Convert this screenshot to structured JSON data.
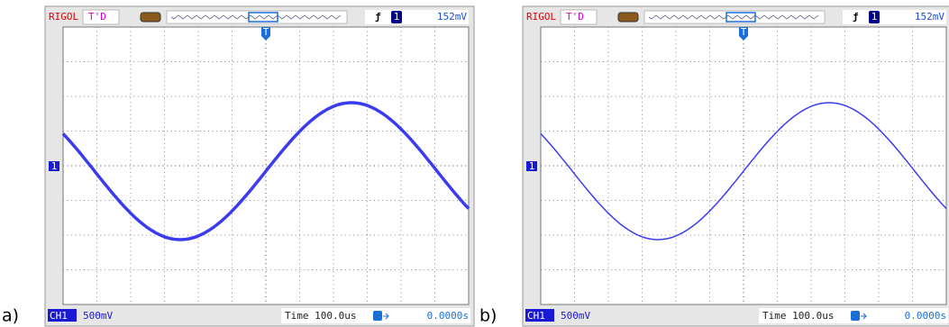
{
  "panels": [
    {
      "label": "a)",
      "header": {
        "brand": "RIGOL",
        "mode": "T'D",
        "trigger_channel": "1",
        "trigger_level": "152mV",
        "trigger_marker": "T"
      },
      "channel_marker": "1",
      "footer": {
        "channel": "CH1",
        "scale": "500mV",
        "timebase": "Time 100.0us",
        "trigger_offset": "0.0000s"
      }
    },
    {
      "label": "b)",
      "header": {
        "brand": "RIGOL",
        "mode": "T'D",
        "trigger_channel": "1",
        "trigger_level": "152mV",
        "trigger_marker": "T"
      },
      "channel_marker": "1",
      "footer": {
        "channel": "CH1",
        "scale": "500mV",
        "timebase": "Time 100.0us",
        "trigger_offset": "0.0000s"
      }
    }
  ]
}
